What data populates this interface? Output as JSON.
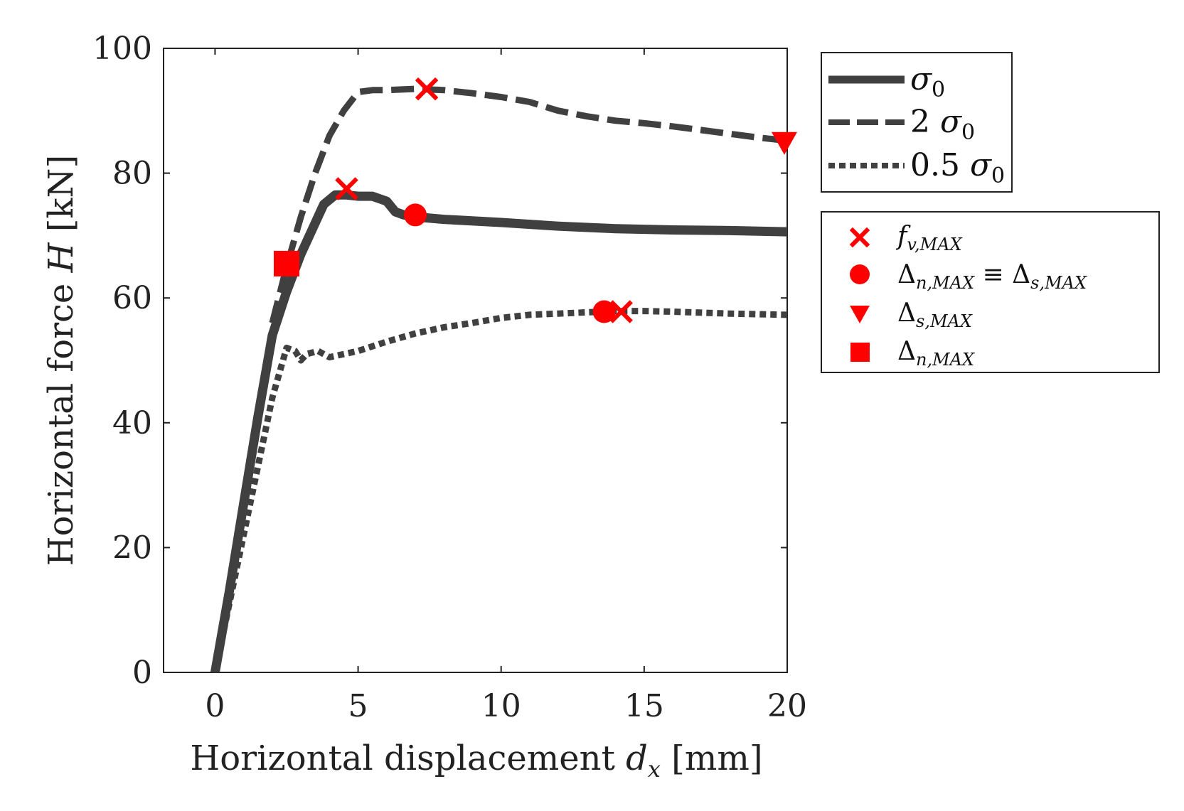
{
  "chart_data": {
    "type": "line",
    "xlabel": {
      "text": "Horizontal displacement ",
      "var": "d",
      "sub": "x",
      "unit": " [mm]"
    },
    "ylabel": {
      "text": "Horizontal force ",
      "var": "H",
      "unit": " [kN]"
    },
    "xlim": [
      -1.8,
      20
    ],
    "ylim": [
      0,
      100
    ],
    "xticks": [
      0,
      5,
      10,
      15,
      20
    ],
    "yticks": [
      0,
      20,
      40,
      60,
      80,
      100
    ],
    "colors": {
      "line": "#404040",
      "marker": "#ff0000",
      "axis": "#222222"
    },
    "series": [
      {
        "name": "σ0",
        "style": "solid",
        "legend": {
          "prefix": "",
          "sub": "0"
        },
        "x": [
          0,
          0.5,
          1.0,
          1.5,
          2.0,
          2.5,
          3.0,
          3.5,
          3.8,
          4.2,
          4.6,
          5.0,
          5.5,
          6.0,
          6.3,
          6.6,
          7.0,
          8.0,
          10.0,
          12.0,
          14.0,
          16.0,
          18.0,
          20.0
        ],
        "y": [
          0,
          13,
          27,
          41,
          54,
          61,
          67,
          72,
          75,
          76.5,
          76.5,
          76.3,
          76.3,
          75.5,
          73.8,
          73.3,
          73.0,
          72.6,
          72.1,
          71.5,
          71.1,
          70.9,
          70.8,
          70.6
        ]
      },
      {
        "name": "2 σ0",
        "style": "dashed",
        "legend": {
          "prefix": "2 ",
          "sub": "0"
        },
        "x": [
          2.0,
          2.5,
          3.0,
          3.5,
          4.0,
          4.5,
          5.0,
          5.5,
          6.0,
          7.0,
          8.0,
          9.0,
          10.0,
          11.0,
          11.5,
          12.0,
          13.0,
          14.0,
          15.0,
          16.0,
          17.0,
          18.0,
          19.0,
          20.0
        ],
        "y": [
          56,
          65,
          73,
          80,
          86,
          90,
          93,
          93.3,
          93.3,
          93.5,
          93.3,
          92.8,
          92.2,
          91.4,
          90.7,
          90.0,
          89.1,
          88.4,
          88.0,
          87.5,
          86.9,
          86.3,
          85.7,
          85.2
        ]
      },
      {
        "name": "0.5 σ0",
        "style": "dotted",
        "legend": {
          "prefix": "0.5 ",
          "sub": "0"
        },
        "x": [
          0,
          1.0,
          2.0,
          2.5,
          2.8,
          3.0,
          3.2,
          3.6,
          4.0,
          5.0,
          6.0,
          7.0,
          8.0,
          9.0,
          10.0,
          11.0,
          12.0,
          13.0,
          13.6,
          14.0,
          15.0,
          16.0,
          18.0,
          20.0
        ],
        "y": [
          0,
          22,
          44,
          52,
          51.5,
          50,
          51,
          51.5,
          50.5,
          51.5,
          53.0,
          54.3,
          55.3,
          56.0,
          56.8,
          57.3,
          57.5,
          57.7,
          57.8,
          57.9,
          57.9,
          57.8,
          57.5,
          57.3
        ]
      }
    ],
    "markers": [
      {
        "type": "x",
        "label_key": "fv",
        "points": [
          [
            4.6,
            77.5
          ],
          [
            7.4,
            93.5
          ],
          [
            14.2,
            57.8
          ]
        ]
      },
      {
        "type": "circle",
        "label_key": "dn_eq_ds",
        "points": [
          [
            7.0,
            73.3
          ],
          [
            13.6,
            57.8
          ]
        ]
      },
      {
        "type": "triangle",
        "label_key": "ds",
        "points": [
          [
            19.9,
            85.0
          ]
        ]
      },
      {
        "type": "square",
        "label_key": "dn",
        "points": [
          [
            2.5,
            65.5
          ]
        ]
      }
    ],
    "legend_lines": {
      "placement": "outside top-right",
      "var": "σ",
      "entries": [
        "σ0",
        "2 σ0",
        "0.5 σ0"
      ]
    },
    "legend_markers": {
      "placement": "outside right, below line legend",
      "entries": [
        {
          "key": "fv",
          "text": "f",
          "sub": "v,MAX"
        },
        {
          "key": "dn_eq_ds",
          "text": "Δ",
          "sub": "n,MAX",
          "rel": " ≡ ",
          "text2": "Δ",
          "sub2": "s,MAX"
        },
        {
          "key": "ds",
          "text": "Δ",
          "sub": "s,MAX"
        },
        {
          "key": "dn",
          "text": "Δ",
          "sub": "n,MAX"
        }
      ]
    }
  }
}
